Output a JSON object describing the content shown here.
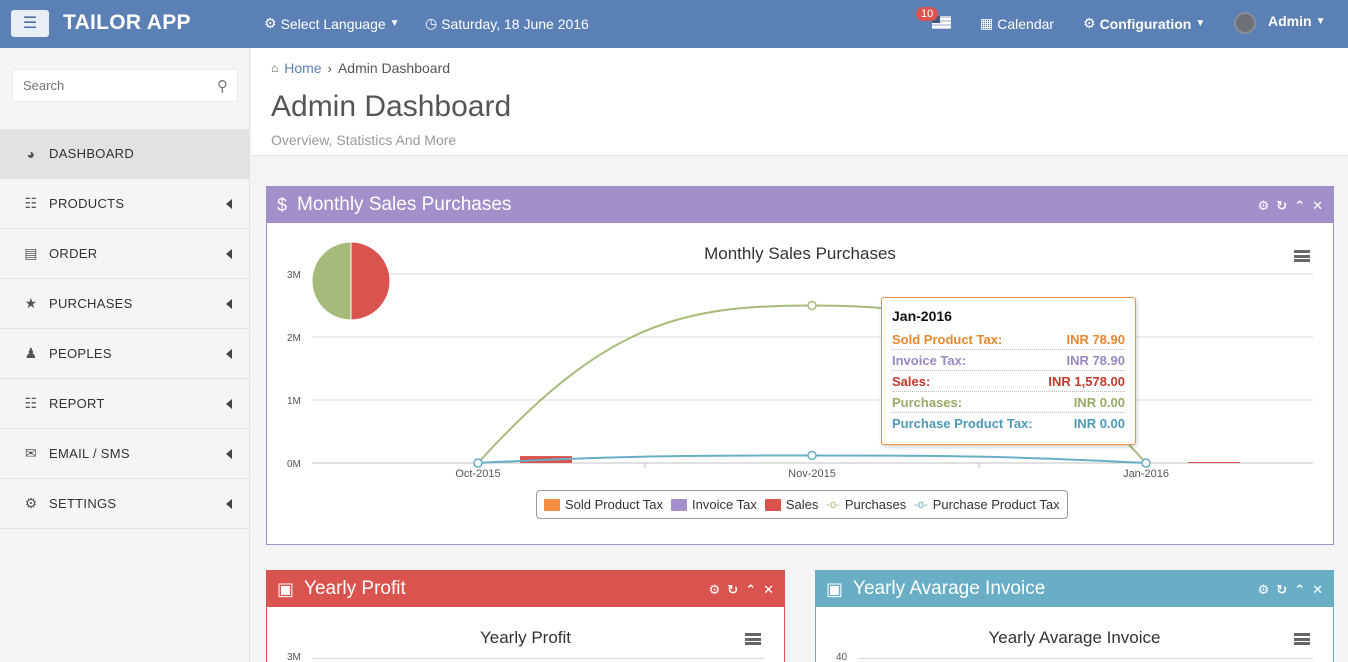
{
  "app": {
    "brand": "TAILOR APP"
  },
  "topbar": {
    "language": "Select Language",
    "date": "Saturday, 18 June 2016",
    "notifications_count": "10",
    "calendar": "Calendar",
    "configuration": "Configuration",
    "user": "Admin"
  },
  "sidebar": {
    "search_placeholder": "Search",
    "items": [
      {
        "label": "DASHBOARD",
        "icon": "dashboard-icon",
        "active": true
      },
      {
        "label": "PRODUCTS",
        "icon": "barcode-icon"
      },
      {
        "label": "ORDER",
        "icon": "server-icon"
      },
      {
        "label": "PURCHASES",
        "icon": "star-icon"
      },
      {
        "label": "PEOPLES",
        "icon": "users-icon"
      },
      {
        "label": "REPORT",
        "icon": "barcode-icon"
      },
      {
        "label": "EMAIL / SMS",
        "icon": "envelope-icon"
      },
      {
        "label": "SETTINGS",
        "icon": "cogs-icon"
      }
    ]
  },
  "breadcrumb": {
    "home": "Home",
    "current": "Admin Dashboard"
  },
  "page": {
    "title": "Admin Dashboard",
    "subtitle": "Overview, Statistics And More"
  },
  "panels": {
    "monthly": {
      "header": "Monthly Sales Purchases",
      "color": "#a38fc9"
    },
    "yearly_profit": {
      "header": "Yearly Profit",
      "color": "#d9534f"
    },
    "yearly_invoice": {
      "header": "Yearly Avarage Invoice",
      "color": "#6aaec6"
    }
  },
  "chart_data": [
    {
      "type": "line",
      "title": "Monthly Sales Purchases",
      "categories": [
        "Oct-2015",
        "Nov-2015",
        "Jan-2016"
      ],
      "y_ticks": [
        "0M",
        "1M",
        "2M",
        "3M"
      ],
      "ylim": [
        0,
        3000000
      ],
      "series": [
        {
          "name": "Sold Product Tax",
          "kind": "column",
          "color": "#f28f43",
          "values": [
            0,
            0,
            78.9
          ]
        },
        {
          "name": "Invoice Tax",
          "kind": "column",
          "color": "#a38fc9",
          "values": [
            0,
            0,
            78.9
          ]
        },
        {
          "name": "Sales",
          "kind": "column",
          "color": "#d9534f",
          "values": [
            110000,
            0,
            1578
          ]
        },
        {
          "name": "Purchases",
          "kind": "spline",
          "color": "#a6bb7a",
          "values": [
            0,
            2500000,
            0
          ]
        },
        {
          "name": "Purchase Product Tax",
          "kind": "spline",
          "color": "#6aaec6",
          "values": [
            0,
            120000,
            0
          ]
        }
      ],
      "pie": {
        "slices": [
          {
            "color": "#a6bb7a",
            "value": 50
          },
          {
            "color": "#d9534f",
            "value": 50
          }
        ]
      },
      "legend_position": "bottom",
      "grid": true,
      "tooltip": {
        "title": "Jan-2016",
        "rows": [
          {
            "label": "Sold Product Tax:",
            "value": "INR 78.90",
            "color": "#e8862f"
          },
          {
            "label": "Invoice Tax:",
            "value": "INR 78.90",
            "color": "#9a88c2"
          },
          {
            "label": "Sales:",
            "value": "INR 1,578.00",
            "color": "#c0392b"
          },
          {
            "label": "Purchases:",
            "value": "INR 0.00",
            "color": "#98aa67"
          },
          {
            "label": "Purchase Product Tax:",
            "value": "INR 0.00",
            "color": "#4f9ab8"
          }
        ]
      }
    },
    {
      "type": "line",
      "title": "Yearly Profit",
      "y_ticks": [
        "3M"
      ]
    },
    {
      "type": "line",
      "title": "Yearly Avarage Invoice",
      "y_ticks": [
        "40"
      ]
    }
  ]
}
